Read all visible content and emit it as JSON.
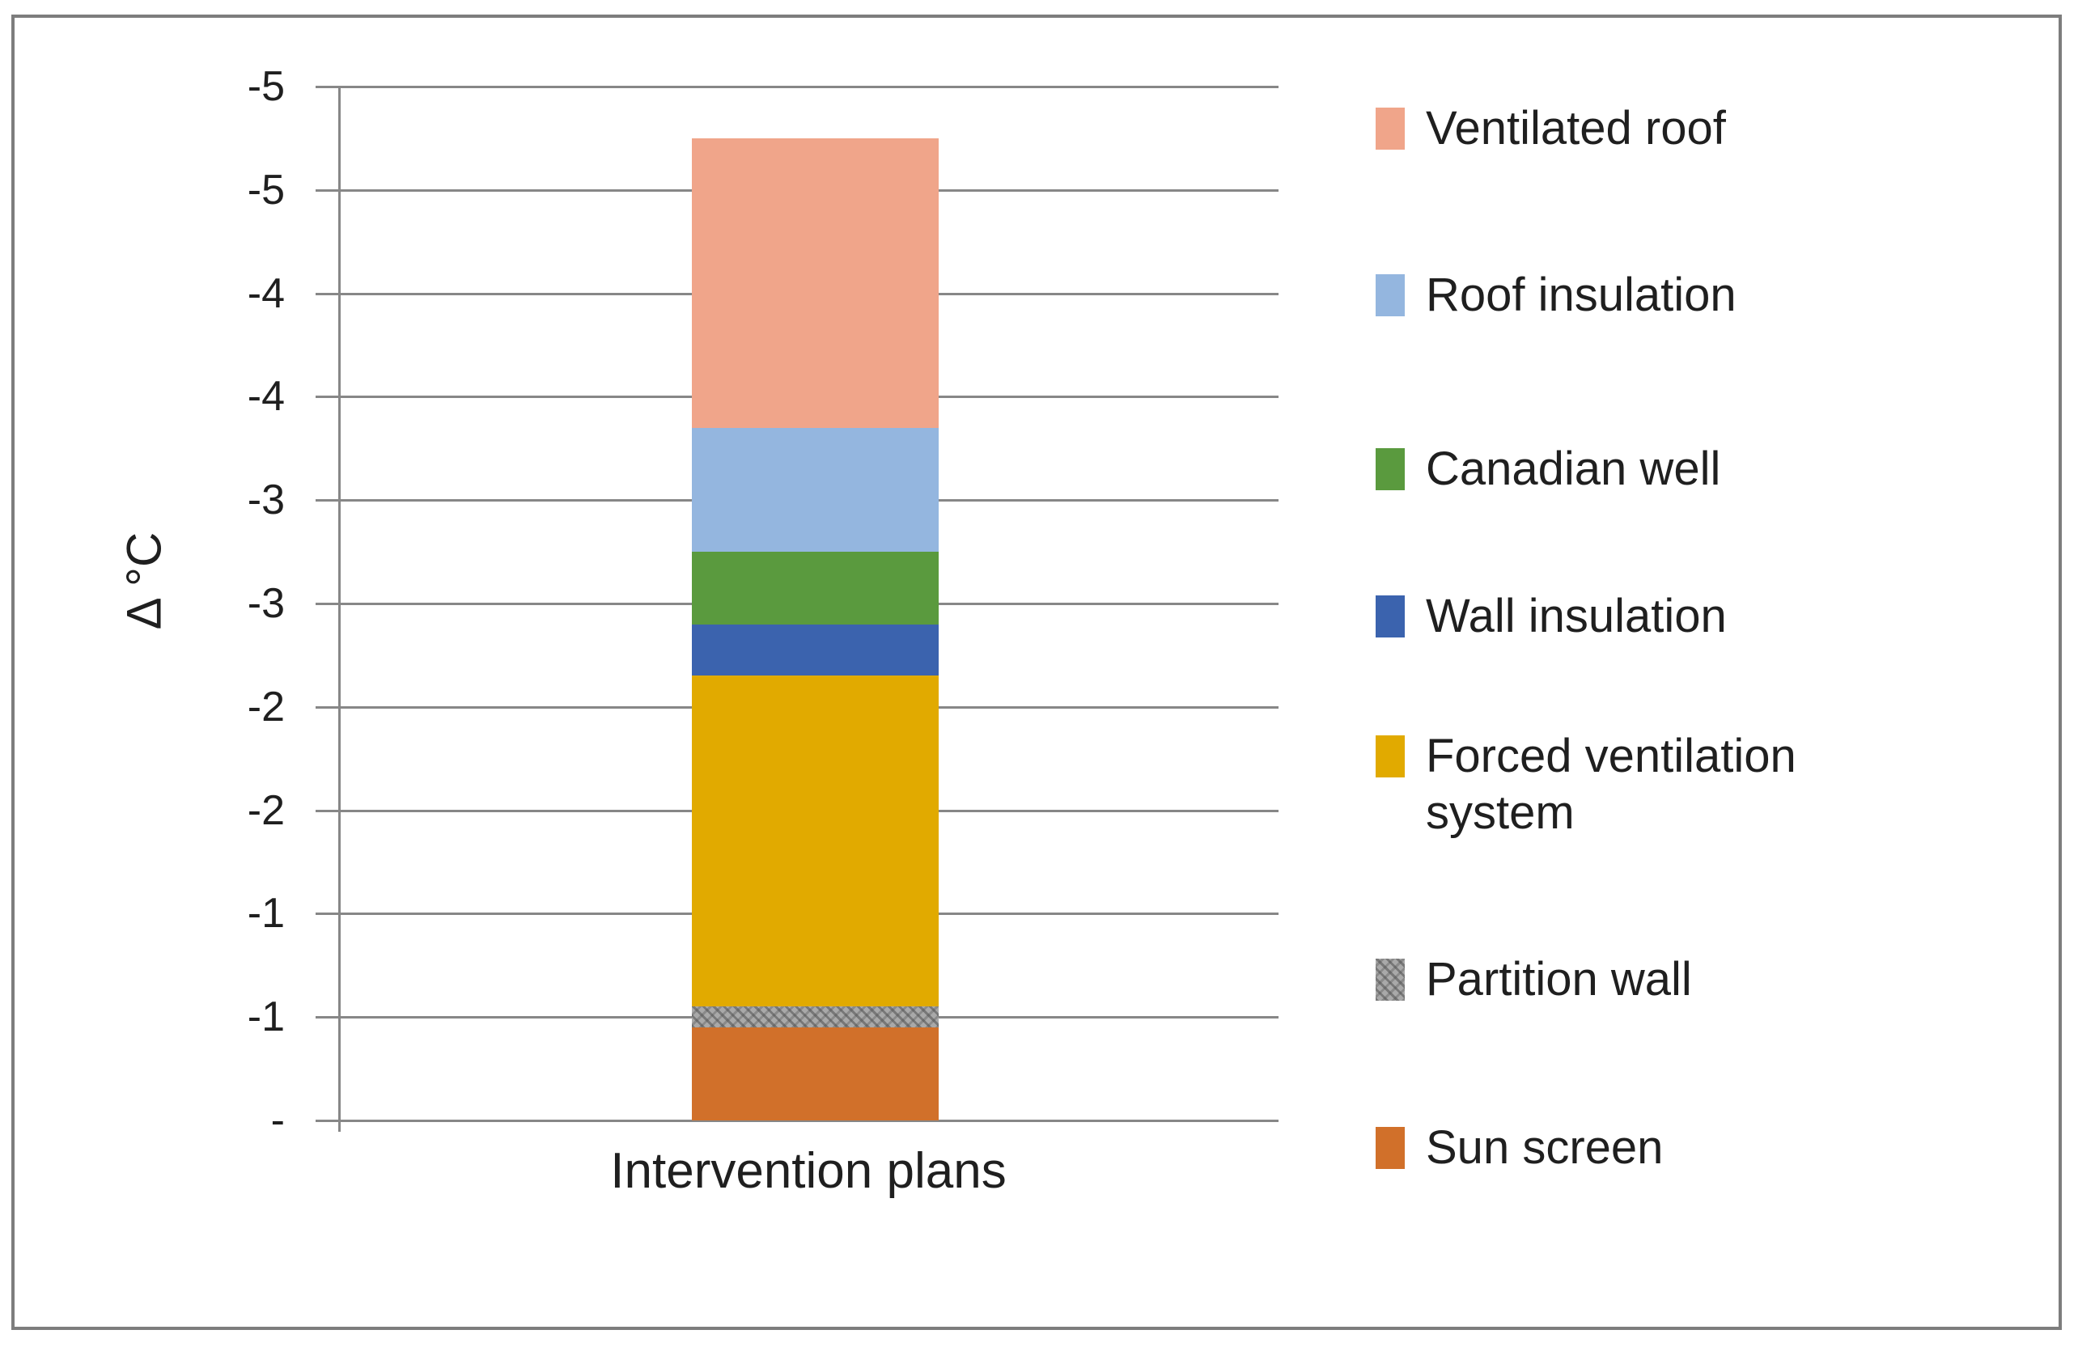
{
  "chart_data": {
    "type": "bar",
    "stacked": true,
    "title": "",
    "xlabel": "Intervention plans",
    "ylabel": "Δ °C",
    "categories": [
      "Intervention plans"
    ],
    "series": [
      {
        "name": "Sun screen",
        "value": -0.45,
        "color": "#D1702A",
        "pattern": "solid"
      },
      {
        "name": "Partition wall",
        "value": -0.1,
        "color": "#A9A9A9",
        "pattern": "hatch"
      },
      {
        "name": "Forced ventilation system",
        "value": -1.6,
        "color": "#E1AA00",
        "pattern": "solid"
      },
      {
        "name": "Wall insulation",
        "value": -0.25,
        "color": "#3B63AE",
        "pattern": "solid"
      },
      {
        "name": "Canadian well",
        "value": -0.35,
        "color": "#5A9A3E",
        "pattern": "solid"
      },
      {
        "name": "Roof insulation",
        "value": -0.6,
        "color": "#94B6DF",
        "pattern": "solid"
      },
      {
        "name": "Ventilated roof",
        "value": -1.4,
        "color": "#F0A58A",
        "pattern": "solid"
      }
    ],
    "total": -4.75,
    "y_axis": {
      "min": -5,
      "max": 0,
      "step": 0.5,
      "orientation": "min-at-top",
      "tick_labels_top_to_bottom": [
        "-5",
        "-5",
        "-4",
        "-4",
        "-3",
        "-3",
        "-2",
        "-2",
        "-1",
        "-1",
        "-"
      ],
      "gridlines": true
    },
    "legend": {
      "position": "right",
      "entries": [
        {
          "label": "Ventilated roof",
          "color": "#F0A58A",
          "pattern": "solid"
        },
        {
          "label": "Roof insulation",
          "color": "#94B6DF",
          "pattern": "solid"
        },
        {
          "label": "Canadian well",
          "color": "#5A9A3E",
          "pattern": "solid"
        },
        {
          "label": "Wall insulation",
          "color": "#3B63AE",
          "pattern": "solid"
        },
        {
          "label": "Forced ventilation system",
          "color": "#E1AA00",
          "pattern": "solid"
        },
        {
          "label": "Partition wall",
          "color": "#A9A9A9",
          "pattern": "hatch"
        },
        {
          "label": "Sun screen",
          "color": "#D1702A",
          "pattern": "solid"
        }
      ]
    }
  },
  "style": {
    "grid_color": "#878787",
    "text_color": "#1F1F1F",
    "frame_border": "#7D7D7D",
    "background": "#FFFFFF"
  }
}
